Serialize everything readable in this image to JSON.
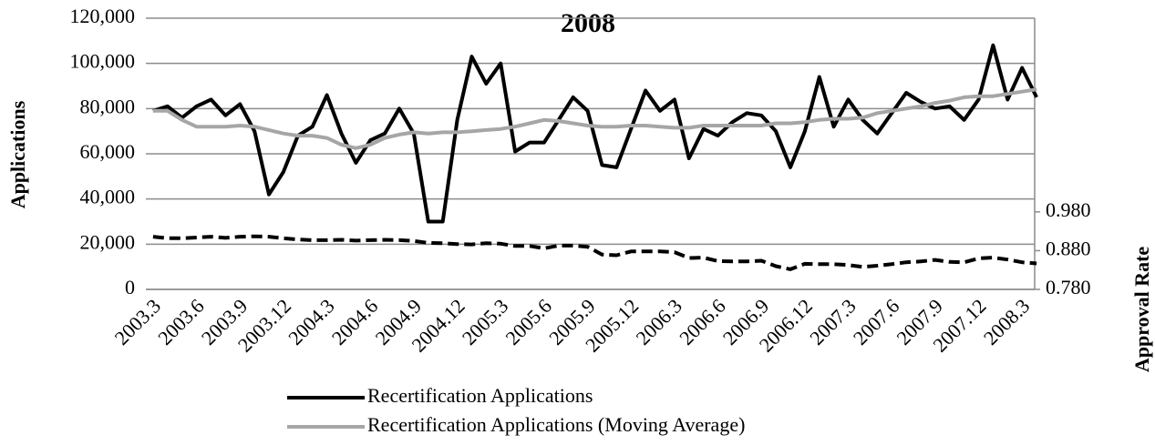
{
  "chart_data": {
    "type": "line",
    "title": "2008",
    "y_label": "Applications",
    "y2_label": "Approval Rate",
    "categories": [
      "2003.3",
      null,
      null,
      "2003.6",
      null,
      null,
      "2003.9",
      null,
      null,
      "2003.12",
      null,
      null,
      "2004.3",
      null,
      null,
      "2004.6",
      null,
      null,
      "2004.9",
      null,
      null,
      "2004.12",
      null,
      null,
      "2005.3",
      null,
      null,
      "2005.6",
      null,
      null,
      "2005.9",
      null,
      null,
      "2005.12",
      null,
      null,
      "2006.3",
      null,
      null,
      "2006.6",
      null,
      null,
      "2006.9",
      null,
      null,
      "2006.12",
      null,
      null,
      "2007.3",
      null,
      null,
      "2007.6",
      null,
      null,
      "2007.9",
      null,
      null,
      "2007.12",
      null,
      null,
      "2008.3",
      null
    ],
    "series": [
      {
        "name": "Recertification Applications",
        "color": "#000000",
        "values": [
          79000,
          81000,
          76000,
          81000,
          84000,
          77000,
          82000,
          70000,
          42000,
          52000,
          68000,
          72000,
          86000,
          69000,
          56000,
          66000,
          69000,
          80000,
          69000,
          30000,
          30000,
          75000,
          103000,
          91000,
          100000,
          61000,
          65000,
          65000,
          75000,
          85000,
          79000,
          55000,
          54000,
          71000,
          88000,
          79000,
          84000,
          58000,
          71000,
          68000,
          74000,
          78000,
          77000,
          70000,
          54000,
          70000,
          94000,
          72000,
          84000,
          75000,
          69000,
          78000,
          87000,
          83000,
          80000,
          81000,
          75000,
          84000,
          108000,
          84000,
          98000,
          85000
        ]
      },
      {
        "name": "Recertification Applications (Moving Average)",
        "color": "#a6a6a6",
        "values": [
          79000,
          79000,
          75000,
          72000,
          72000,
          72000,
          72500,
          72000,
          70500,
          69000,
          68000,
          68000,
          67000,
          64000,
          62500,
          64000,
          67000,
          68500,
          69500,
          69000,
          69500,
          69500,
          70000,
          70500,
          71000,
          72000,
          73500,
          75000,
          74500,
          73500,
          72500,
          72000,
          72000,
          72500,
          72500,
          72000,
          71500,
          71500,
          72500,
          72500,
          72500,
          72500,
          72500,
          73500,
          73500,
          74000,
          75000,
          75500,
          75500,
          76000,
          78000,
          79000,
          80000,
          81000,
          82500,
          83500,
          85000,
          85500,
          85500,
          86500,
          87500,
          88500
        ]
      },
      {
        "color": "#000000",
        "dashed": true,
        "axis": "y2",
        "values": [
          0.916,
          0.912,
          0.912,
          0.914,
          0.916,
          0.913,
          0.916,
          0.917,
          0.916,
          0.912,
          0.909,
          0.907,
          0.907,
          0.908,
          0.906,
          0.907,
          0.908,
          0.907,
          0.905,
          0.9,
          0.899,
          0.897,
          0.896,
          0.899,
          0.898,
          0.892,
          0.892,
          0.886,
          0.893,
          0.893,
          0.89,
          0.87,
          0.868,
          0.878,
          0.878,
          0.878,
          0.876,
          0.861,
          0.862,
          0.853,
          0.852,
          0.852,
          0.854,
          0.84,
          0.832,
          0.846,
          0.845,
          0.845,
          0.843,
          0.838,
          0.841,
          0.845,
          0.85,
          0.852,
          0.856,
          0.851,
          0.85,
          0.86,
          0.862,
          0.857,
          0.85,
          0.847
        ]
      }
    ],
    "ylim": [
      0,
      120000
    ],
    "yticks": [
      0,
      {
        "value": 20000,
        "label": "20,000"
      },
      {
        "value": 40000,
        "label": "40,000"
      },
      {
        "value": 60000,
        "label": "60,000"
      },
      {
        "value": 80000,
        "label": "80,000"
      },
      {
        "value": 100000,
        "label": "100,000"
      },
      {
        "value": 120000,
        "label": "120,000"
      }
    ],
    "y2lim": [
      0.78,
      1.48
    ],
    "y2ticks": [
      {
        "value": 0.78,
        "label": "0.780"
      },
      {
        "value": 0.88,
        "label": "0.880"
      },
      {
        "value": 0.98,
        "label": "0.980"
      }
    ],
    "grid": true
  }
}
